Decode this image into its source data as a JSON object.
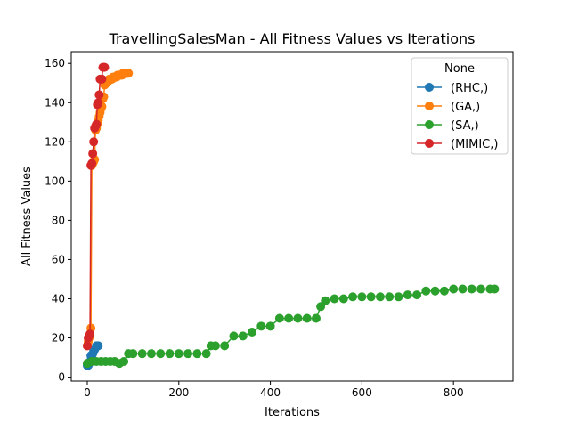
{
  "chart_data": {
    "type": "line",
    "title": "TravellingSalesMan - All Fitness Values vs Iterations",
    "xlabel": "Iterations",
    "ylabel": "All Fitness Values",
    "xlim": [
      -35,
      930
    ],
    "ylim": [
      -2,
      166
    ],
    "xticks": [
      0,
      200,
      400,
      600,
      800
    ],
    "yticks": [
      0,
      20,
      40,
      60,
      80,
      100,
      120,
      140,
      160
    ],
    "grid": false,
    "legend": {
      "title": "None",
      "placement": "top-right"
    },
    "series": [
      {
        "name": "(RHC,)",
        "color": "#1f77b4",
        "x": [
          0,
          2,
          4,
          6,
          8,
          10,
          12,
          14,
          16,
          18,
          20,
          22,
          24
        ],
        "y": [
          6,
          6,
          7,
          8,
          11,
          11,
          12,
          14,
          14,
          15,
          16,
          16,
          16
        ]
      },
      {
        "name": "(GA,)",
        "color": "#ff7f0e",
        "x": [
          0,
          2,
          4,
          6,
          8,
          10,
          12,
          14,
          16,
          18,
          20,
          22,
          24,
          26,
          28,
          30,
          32,
          34,
          36,
          38,
          40,
          42,
          44,
          46,
          48,
          50,
          52,
          54,
          56,
          58,
          60,
          62,
          64,
          66,
          68,
          70,
          72,
          74,
          76,
          78,
          80,
          82,
          84,
          86,
          88,
          90
        ],
        "y": [
          16,
          18,
          20,
          22,
          25,
          108,
          109,
          110,
          111,
          126,
          127,
          129,
          131,
          133,
          135,
          137,
          138,
          142,
          143,
          149,
          150,
          150,
          151,
          151,
          152,
          152,
          152,
          152,
          153,
          153,
          153,
          153,
          153,
          154,
          154,
          154,
          154,
          154,
          154,
          155,
          155,
          155,
          155,
          155,
          155,
          155
        ]
      },
      {
        "name": "(SA,)",
        "color": "#2ca02c",
        "x": [
          0,
          10,
          20,
          30,
          40,
          50,
          60,
          70,
          80,
          90,
          100,
          120,
          140,
          160,
          180,
          200,
          220,
          240,
          260,
          270,
          280,
          300,
          320,
          340,
          360,
          380,
          400,
          420,
          440,
          460,
          480,
          500,
          510,
          520,
          540,
          560,
          580,
          600,
          620,
          640,
          660,
          680,
          700,
          720,
          740,
          760,
          780,
          800,
          820,
          840,
          860,
          880,
          890
        ],
        "y": [
          7,
          8,
          8,
          8,
          8,
          8,
          8,
          7,
          8,
          12,
          12,
          12,
          12,
          12,
          12,
          12,
          12,
          12,
          12,
          16,
          16,
          16,
          21,
          21,
          23,
          26,
          26,
          30,
          30,
          30,
          30,
          30,
          36,
          39,
          40,
          40,
          41,
          41,
          41,
          41,
          41,
          41,
          42,
          42,
          44,
          44,
          44,
          45,
          45,
          45,
          45,
          45,
          45
        ]
      },
      {
        "name": "(MIMIC,)",
        "color": "#d62728",
        "x": [
          0,
          2,
          4,
          6,
          8,
          10,
          12,
          14,
          16,
          18,
          20,
          22,
          24,
          26,
          28,
          30,
          32,
          34,
          36,
          38
        ],
        "y": [
          16,
          20,
          21,
          22,
          108,
          109,
          114,
          120,
          127,
          128,
          129,
          139,
          140,
          144,
          152,
          152,
          152,
          158,
          158,
          158
        ]
      }
    ]
  }
}
